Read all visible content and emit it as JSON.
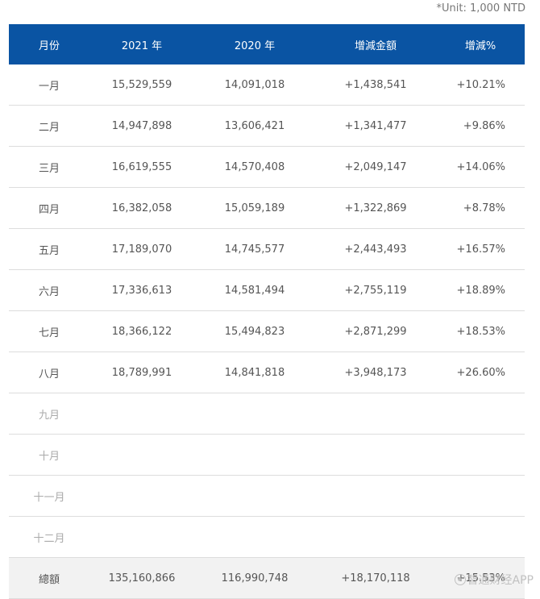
{
  "unit_note": "*Unit: 1,000 NTD",
  "table": {
    "headers": {
      "month": "月份",
      "y2021": "2021 年",
      "y2020": "2020 年",
      "diff": "增減金額",
      "pct": "增減%"
    },
    "rows": [
      {
        "month": "一月",
        "y2021": "15,529,559",
        "y2020": "14,091,018",
        "diff": "+1,438,541",
        "pct": "+10.21%"
      },
      {
        "month": "二月",
        "y2021": "14,947,898",
        "y2020": "13,606,421",
        "diff": "+1,341,477",
        "pct": "+9.86%"
      },
      {
        "month": "三月",
        "y2021": "16,619,555",
        "y2020": "14,570,408",
        "diff": "+2,049,147",
        "pct": "+14.06%"
      },
      {
        "month": "四月",
        "y2021": "16,382,058",
        "y2020": "15,059,189",
        "diff": "+1,322,869",
        "pct": "+8.78%"
      },
      {
        "month": "五月",
        "y2021": "17,189,070",
        "y2020": "14,745,577",
        "diff": "+2,443,493",
        "pct": "+16.57%"
      },
      {
        "month": "六月",
        "y2021": "17,336,613",
        "y2020": "14,581,494",
        "diff": "+2,755,119",
        "pct": "+18.89%"
      },
      {
        "month": "七月",
        "y2021": "18,366,122",
        "y2020": "15,494,823",
        "diff": "+2,871,299",
        "pct": "+18.53%"
      },
      {
        "month": "八月",
        "y2021": "18,789,991",
        "y2020": "14,841,818",
        "diff": "+3,948,173",
        "pct": "+26.60%"
      },
      {
        "month": "九月",
        "y2021": "",
        "y2020": "",
        "diff": "",
        "pct": ""
      },
      {
        "month": "十月",
        "y2021": "",
        "y2020": "",
        "diff": "",
        "pct": ""
      },
      {
        "month": "十一月",
        "y2021": "",
        "y2020": "",
        "diff": "",
        "pct": ""
      },
      {
        "month": "十二月",
        "y2021": "",
        "y2020": "",
        "diff": "",
        "pct": ""
      }
    ],
    "total": {
      "month": "總額",
      "y2021": "135,160,866",
      "y2020": "116,990,748",
      "diff": "+18,170,118",
      "pct": "+15.53%"
    }
  },
  "watermark": {
    "icon": "watermark-logo-icon",
    "text": "智通财经APP"
  }
}
